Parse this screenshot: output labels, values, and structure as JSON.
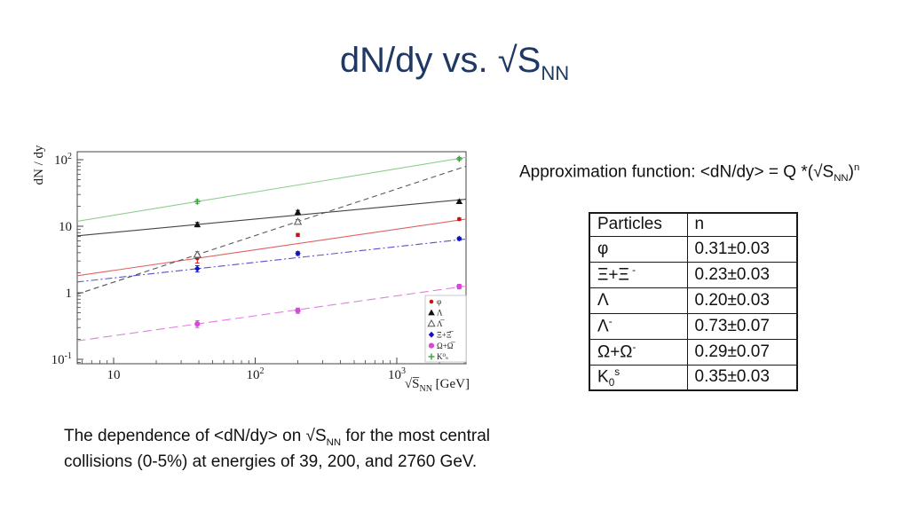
{
  "slide": {
    "title_html": "dN/dy vs. √S<sub>NN</sub>",
    "title_color": "#1f3864",
    "approx_html": "Approximation function: &lt;dN/dy&gt; = Q *(√S<sub>NN</sub>)<sup>n</sup>",
    "caption_html": "The dependence of &lt;dN/dy&gt; on √S<sub>NN</sub> for the most central<br>collisions (0-5%) at energies of 39, 200, and 2760 GeV."
  },
  "table": {
    "headers": [
      "Particles",
      "n"
    ],
    "rows": [
      {
        "particle_html": "φ",
        "n": "0.31±0.03"
      },
      {
        "particle_html": "Ξ+Ξ<sup> -</sup>",
        "n": "0.23±0.03"
      },
      {
        "particle_html": "Λ",
        "n": "0.20±0.03"
      },
      {
        "particle_html": "Λ<sup>-</sup>",
        "n": "0.73±0.07"
      },
      {
        "particle_html": "Ω+Ω<sup>-</sup>",
        "n": "0.29±0.07"
      },
      {
        "particle_html": "K<sub>0</sub><sup>s</sup>",
        "n": "0.35±0.03"
      }
    ]
  },
  "chart_data": {
    "type": "scatter",
    "title": "",
    "xlabel": "√S̅NN [GeV]",
    "xlabel_parts": {
      "radical": "√",
      "symbol": "S̅",
      "sub": "NN",
      "units": " [GeV]"
    },
    "ylabel": "dN / dy",
    "xscale": "log",
    "yscale": "log",
    "xlim": [
      5.5,
      3090
    ],
    "ylim": [
      0.086,
      132
    ],
    "x_major_ticks": [
      10,
      100,
      1000
    ],
    "y_major_ticks": [
      0.1,
      1,
      10,
      100
    ],
    "grid": false,
    "legend_position": "inside-right-bottom",
    "energies_gev": [
      39,
      200,
      2760
    ],
    "series": [
      {
        "name": "phi",
        "legend": "φ",
        "marker": "circle",
        "marker_color": "#cc1111",
        "line_color": "#e06060",
        "line_style": "solid",
        "x": [
          39,
          200,
          2760
        ],
        "y": [
          3.3,
          7.4,
          12.8
        ],
        "yerr": [
          0.5,
          0.4,
          0.5
        ],
        "fit": {
          "Q": 1.06,
          "n": 0.31
        }
      },
      {
        "name": "lambda",
        "legend": "Λ",
        "marker": "triangle",
        "marker_color": "#111111",
        "line_color": "#444444",
        "line_style": "solid",
        "x": [
          39,
          200,
          2760
        ],
        "y": [
          10.6,
          16.3,
          23.6
        ],
        "yerr": [
          0.8,
          1.0,
          1.2
        ],
        "fit": {
          "Q": 5.1,
          "n": 0.2
        }
      },
      {
        "name": "anti-lambda",
        "legend": "Λ̅",
        "marker": "triangle-open",
        "marker_color": "#555555",
        "line_color": "#555555",
        "line_style": "dashed",
        "x": [
          39,
          200
        ],
        "y": [
          3.74,
          11.7
        ],
        "yerr": [
          0.4,
          0.9
        ],
        "fit": {
          "Q": 0.288,
          "n": 0.7
        }
      },
      {
        "name": "xi",
        "legend": "Ξ+Ξ̅",
        "marker": "diamond",
        "marker_color": "#1111cc",
        "line_color": "#5555cc",
        "line_style": "dashdot",
        "x": [
          39,
          200,
          2760
        ],
        "y": [
          2.3,
          3.9,
          6.5
        ],
        "yerr": [
          0.25,
          0.25,
          0.35
        ],
        "fit": {
          "Q": 0.972,
          "n": 0.235
        }
      },
      {
        "name": "omega",
        "legend": "Ω+Ω̅",
        "marker": "circle-big",
        "marker_color": "#dd44dd",
        "line_color": "#e080e0",
        "line_style": "longdash",
        "x": [
          39,
          200,
          2760
        ],
        "y": [
          0.34,
          0.54,
          1.24
        ],
        "yerr": [
          0.04,
          0.05,
          0.1
        ],
        "fit": {
          "Q": 0.1133,
          "n": 0.3
        }
      },
      {
        "name": "k0s",
        "legend": "K⁰ₛ",
        "marker": "plus",
        "marker_color": "#33a433",
        "line_color": "#8fce8f",
        "line_style": "solid",
        "x": [
          39,
          2760
        ],
        "y": [
          23.5,
          103.0
        ],
        "yerr": [
          1.5,
          5.0
        ],
        "fit": {
          "Q": 6.52,
          "n": 0.35
        }
      }
    ]
  }
}
